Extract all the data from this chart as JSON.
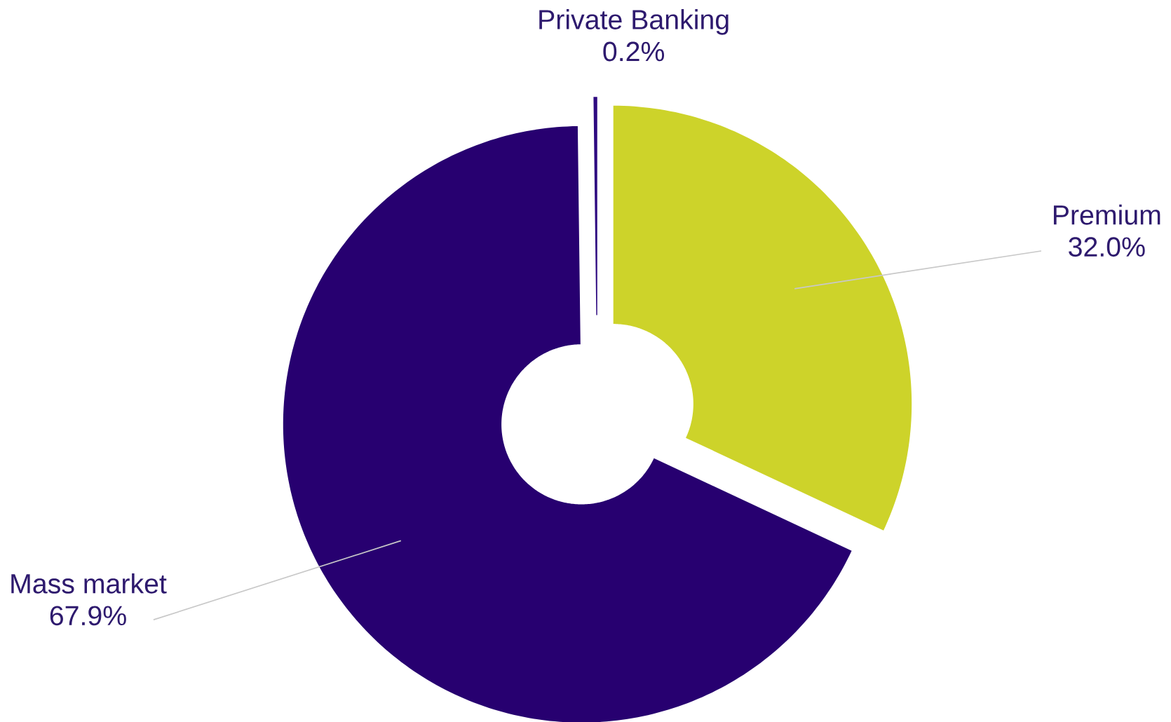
{
  "chart_data": {
    "type": "donut",
    "categories": [
      "Premium",
      "Mass market",
      "Private Banking"
    ],
    "values": [
      32.0,
      67.9,
      0.2
    ],
    "value_labels": [
      "32.0%",
      "67.9%",
      "0.2%"
    ],
    "colors": [
      "#cdd32a",
      "#270070",
      "#2e0a80"
    ]
  }
}
